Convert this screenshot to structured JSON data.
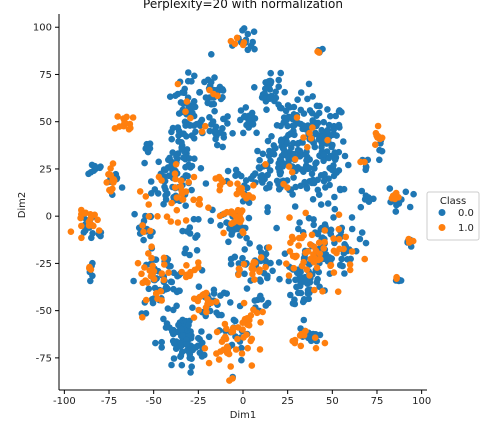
{
  "chart_data": {
    "type": "scatter",
    "title": "Perplexity=20 with normalization",
    "xlabel": "Dim1",
    "ylabel": "Dim2",
    "xlim": [
      -103,
      103
    ],
    "ylim": [
      -92,
      107
    ],
    "xticks": [
      -100,
      -75,
      -50,
      -25,
      0,
      25,
      50,
      75,
      100
    ],
    "yticks": [
      -75,
      -50,
      -25,
      0,
      25,
      50,
      75,
      100
    ],
    "grid": false,
    "legend": {
      "title": "Class",
      "placement": "center-right"
    },
    "series": [
      {
        "name": "0.0",
        "color": "#1f77b4",
        "clusters": [
          {
            "x": 42,
            "y": 35,
            "sx": 8,
            "sy": 14,
            "n": 140
          },
          {
            "x": 22,
            "y": 30,
            "sx": 8,
            "sy": 12,
            "n": 80
          },
          {
            "x": 15,
            "y": 67,
            "sx": 3,
            "sy": 5,
            "n": 30
          },
          {
            "x": 27,
            "y": 50,
            "sx": 4,
            "sy": 5,
            "n": 25
          },
          {
            "x": -32,
            "y": 48,
            "sx": 5,
            "sy": 12,
            "n": 70
          },
          {
            "x": -16,
            "y": 66,
            "sx": 4,
            "sy": 6,
            "n": 30
          },
          {
            "x": -15,
            "y": 45,
            "sx": 4,
            "sy": 5,
            "n": 20
          },
          {
            "x": 3,
            "y": 50,
            "sx": 3,
            "sy": 4,
            "n": 18
          },
          {
            "x": 2,
            "y": 93,
            "sx": 3,
            "sy": 3,
            "n": 14
          },
          {
            "x": 43,
            "y": 87,
            "sx": 1,
            "sy": 1,
            "n": 4
          },
          {
            "x": -38,
            "y": 20,
            "sx": 6,
            "sy": 8,
            "n": 60
          },
          {
            "x": -45,
            "y": -35,
            "sx": 7,
            "sy": 8,
            "n": 60
          },
          {
            "x": -33,
            "y": -67,
            "sx": 6,
            "sy": 7,
            "n": 80
          },
          {
            "x": 35,
            "y": -35,
            "sx": 5,
            "sy": 7,
            "n": 55
          },
          {
            "x": 45,
            "y": -15,
            "sx": 10,
            "sy": 8,
            "n": 80
          },
          {
            "x": 36,
            "y": -64,
            "sx": 3,
            "sy": 3,
            "n": 12
          },
          {
            "x": -18,
            "y": -45,
            "sx": 4,
            "sy": 4,
            "n": 20
          },
          {
            "x": 5,
            "y": -25,
            "sx": 6,
            "sy": 6,
            "n": 35
          },
          {
            "x": -5,
            "y": -5,
            "sx": 6,
            "sy": 6,
            "n": 30
          },
          {
            "x": 0,
            "y": 18,
            "sx": 4,
            "sy": 4,
            "n": 12
          },
          {
            "x": 12,
            "y": 22,
            "sx": 4,
            "sy": 4,
            "n": 14
          },
          {
            "x": -53,
            "y": 35,
            "sx": 1,
            "sy": 2,
            "n": 8
          },
          {
            "x": -85,
            "y": -5,
            "sx": 4,
            "sy": 4,
            "n": 16
          },
          {
            "x": -82,
            "y": 25,
            "sx": 2,
            "sy": 2,
            "n": 8
          },
          {
            "x": -86,
            "y": -29,
            "sx": 1,
            "sy": 2,
            "n": 6
          },
          {
            "x": -72,
            "y": 18,
            "sx": 2,
            "sy": 3,
            "n": 8
          },
          {
            "x": -55,
            "y": -5,
            "sx": 3,
            "sy": 5,
            "n": 12
          },
          {
            "x": -28,
            "y": -10,
            "sx": 3,
            "sy": 5,
            "n": 12
          },
          {
            "x": 68,
            "y": 28,
            "sx": 2,
            "sy": 2,
            "n": 6
          },
          {
            "x": 55,
            "y": 14,
            "sx": 1,
            "sy": 1,
            "n": 3
          },
          {
            "x": 85,
            "y": 8,
            "sx": 4,
            "sy": 3,
            "n": 14
          },
          {
            "x": 87,
            "y": -34,
            "sx": 1,
            "sy": 1,
            "n": 4
          },
          {
            "x": 76,
            "y": 37,
            "sx": 2,
            "sy": 3,
            "n": 6
          },
          {
            "x": -3,
            "y": -60,
            "sx": 6,
            "sy": 8,
            "n": 20
          },
          {
            "x": 9,
            "y": -47,
            "sx": 3,
            "sy": 3,
            "n": 8
          },
          {
            "x": 67,
            "y": 10,
            "sx": 2,
            "sy": 2,
            "n": 6
          },
          {
            "x": 93,
            "y": -13,
            "sx": 1,
            "sy": 2,
            "n": 4
          }
        ]
      },
      {
        "name": "1.0",
        "color": "#ff7f0e",
        "clusters": [
          {
            "x": -65,
            "y": 48,
            "sx": 3,
            "sy": 3,
            "n": 14
          },
          {
            "x": -73,
            "y": 18,
            "sx": 2,
            "sy": 3,
            "n": 10
          },
          {
            "x": -85,
            "y": -3,
            "sx": 4,
            "sy": 3,
            "n": 18
          },
          {
            "x": -85,
            "y": -28,
            "sx": 1,
            "sy": 1,
            "n": 3
          },
          {
            "x": -35,
            "y": 12,
            "sx": 6,
            "sy": 7,
            "n": 30
          },
          {
            "x": -50,
            "y": -33,
            "sx": 5,
            "sy": 7,
            "n": 28
          },
          {
            "x": -23,
            "y": -45,
            "sx": 4,
            "sy": 4,
            "n": 14
          },
          {
            "x": -7,
            "y": -68,
            "sx": 6,
            "sy": 8,
            "n": 40
          },
          {
            "x": 5,
            "y": -55,
            "sx": 4,
            "sy": 4,
            "n": 10
          },
          {
            "x": 35,
            "y": -65,
            "sx": 4,
            "sy": 3,
            "n": 12
          },
          {
            "x": 40,
            "y": -20,
            "sx": 12,
            "sy": 8,
            "n": 60
          },
          {
            "x": 8,
            "y": -28,
            "sx": 4,
            "sy": 5,
            "n": 16
          },
          {
            "x": -5,
            "y": -2,
            "sx": 5,
            "sy": 5,
            "n": 22
          },
          {
            "x": -30,
            "y": -30,
            "sx": 3,
            "sy": 3,
            "n": 10
          },
          {
            "x": -12,
            "y": 18,
            "sx": 3,
            "sy": 2,
            "n": 8
          },
          {
            "x": 0,
            "y": 12,
            "sx": 3,
            "sy": 3,
            "n": 8
          },
          {
            "x": 75,
            "y": 40,
            "sx": 2,
            "sy": 3,
            "n": 8
          },
          {
            "x": 86,
            "y": 10,
            "sx": 2,
            "sy": 2,
            "n": 6
          },
          {
            "x": 93,
            "y": -13,
            "sx": 1,
            "sy": 1,
            "n": 3
          },
          {
            "x": 86,
            "y": -33,
            "sx": 1,
            "sy": 1,
            "n": 2
          },
          {
            "x": 0,
            "y": 93,
            "sx": 3,
            "sy": 2,
            "n": 5
          },
          {
            "x": 43,
            "y": 88,
            "sx": 1,
            "sy": 1,
            "n": 2
          },
          {
            "x": 35,
            "y": 40,
            "sx": 6,
            "sy": 8,
            "n": 8
          },
          {
            "x": 18,
            "y": 20,
            "sx": 5,
            "sy": 4,
            "n": 6
          },
          {
            "x": -32,
            "y": 55,
            "sx": 3,
            "sy": 6,
            "n": 4
          },
          {
            "x": -17,
            "y": 65,
            "sx": 2,
            "sy": 4,
            "n": 3
          },
          {
            "x": -23,
            "y": 47,
            "sx": 1,
            "sy": 1,
            "n": 2
          },
          {
            "x": 67,
            "y": 28,
            "sx": 1,
            "sy": 1,
            "n": 2
          },
          {
            "x": -53,
            "y": 0,
            "sx": 3,
            "sy": 4,
            "n": 6
          },
          {
            "x": -75,
            "y": 27,
            "sx": 1,
            "sy": 1,
            "n": 2
          }
        ]
      }
    ]
  }
}
